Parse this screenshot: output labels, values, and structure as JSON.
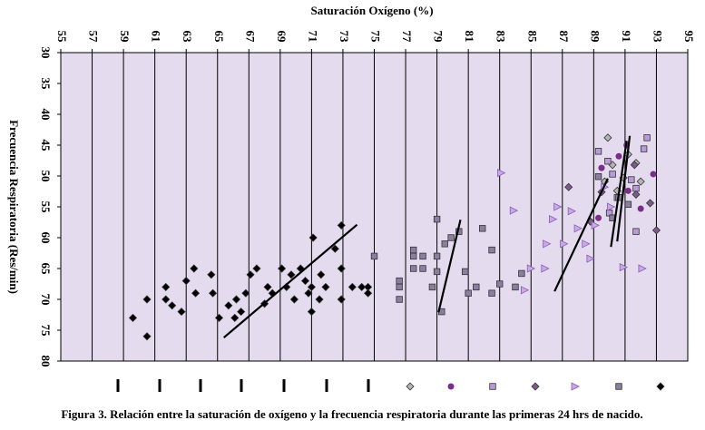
{
  "chart_data": {
    "type": "scatter",
    "title": "Saturación  Oxígeno (%)",
    "y_label": "Frecuencia Respiratoria (Res/min)",
    "caption": "Figura 3. Relación entre la saturación de oxígeno y la frecuencia respiratoria durante las primeras 24 hrs de nacido.",
    "xlim": [
      55,
      95
    ],
    "xticks": [
      55,
      57,
      59,
      61,
      63,
      65,
      67,
      69,
      71,
      73,
      75,
      77,
      79,
      81,
      83,
      85,
      87,
      89,
      91,
      93,
      95
    ],
    "ylim": [
      30,
      80
    ],
    "yticks": [
      30,
      35,
      40,
      45,
      50,
      55,
      60,
      65,
      70,
      75,
      80
    ],
    "y_inverted": true,
    "x_axis_position": "top",
    "grid": "vertical",
    "background": "#e4dcee",
    "series": [
      {
        "marker": "diamond",
        "color": "#b4b4b4",
        "x": [
          89.9,
          89.7,
          90.2,
          90.9,
          91.7,
          92.0,
          90.5,
          91.2
        ],
        "values": [
          43.8,
          50.9,
          48.2,
          50.3,
          47.9,
          50.9,
          52.4,
          46.5
        ]
      },
      {
        "marker": "circle",
        "color": "#7b2d8b",
        "x": [
          91.1,
          90.6,
          92.8,
          89.3,
          91.2,
          92.0,
          89.5
        ],
        "values": [
          45.0,
          46.8,
          49.7,
          56.8,
          52.4,
          55.3,
          48.7
        ]
      },
      {
        "marker": "square",
        "color": "#b89ad6",
        "x": [
          89.3,
          89.9,
          90.2,
          90.5,
          91.4,
          91.7,
          92.2,
          92.4,
          91.7,
          90.0
        ],
        "values": [
          46.0,
          47.6,
          49.7,
          53.5,
          50.6,
          52.0,
          45.6,
          43.8,
          59.0,
          56.0
        ]
      },
      {
        "marker": "diamond",
        "color": "#7d5a8a",
        "x": [
          87.4,
          88.8,
          89.5,
          91.6,
          92.6,
          93.0,
          91.7
        ],
        "values": [
          51.8,
          57.4,
          52.6,
          48.2,
          54.4,
          58.8,
          53.0
        ]
      },
      {
        "marker": "triangle",
        "color": "#c8a8e8",
        "x": [
          83.1,
          83.9,
          84.6,
          85.0,
          85.9,
          86.0,
          86.4,
          86.7,
          87.1,
          87.6,
          88.0,
          88.5,
          88.8,
          89.1,
          89.7,
          90.1,
          90.9,
          92.1
        ],
        "values": [
          49.5,
          55.6,
          68.5,
          65.0,
          65.0,
          61.0,
          57.0,
          55.0,
          61.0,
          55.7,
          58.5,
          61.0,
          63.4,
          58.0,
          51.8,
          55.0,
          64.8,
          65.0
        ]
      },
      {
        "marker": "square",
        "color": "#8c7ea0",
        "x": [
          76.6,
          76.6,
          76.6,
          77.5,
          77.5,
          77.5,
          78.1,
          78.1,
          78.7,
          79.0,
          79.0,
          79.0,
          79.5,
          79.9,
          80.4,
          80.8,
          81.0,
          81.5,
          81.9,
          82.5,
          82.5,
          83.0,
          84.0,
          84.4,
          75.0,
          79.3,
          89.3,
          90.2,
          90.6,
          91.2
        ],
        "values": [
          67.0,
          68.0,
          70.0,
          62.0,
          63.0,
          65.0,
          65.0,
          63.0,
          68.0,
          57.0,
          63.0,
          65.5,
          61.0,
          60.0,
          59.0,
          65.5,
          69.0,
          68.0,
          58.5,
          62.0,
          69.0,
          67.5,
          68.0,
          65.8,
          63.0,
          72.0,
          50.1,
          56.8,
          53.5,
          54.6
        ]
      },
      {
        "marker": "diamond",
        "color": "#000000",
        "x": [
          59.6,
          60.5,
          60.5,
          61.7,
          61.7,
          62.1,
          62.7,
          63.0,
          63.5,
          63.6,
          64.6,
          64.7,
          65.1,
          65.7,
          66.1,
          66.2,
          66.5,
          66.8,
          67.1,
          67.5,
          68.0,
          68.2,
          68.5,
          69.1,
          69.4,
          69.7,
          69.9,
          70.3,
          70.6,
          70.8,
          71.0,
          71.0,
          71.1,
          71.5,
          71.6,
          71.9,
          72.5,
          72.9,
          72.9,
          72.9,
          73.6,
          74.2,
          74.6,
          74.6
        ],
        "values": [
          73.0,
          70.0,
          76.0,
          68.0,
          70.0,
          71.0,
          72.0,
          67.0,
          65.0,
          69.0,
          66.0,
          69.0,
          73.0,
          71.0,
          73.0,
          70.0,
          72.0,
          69.0,
          66.0,
          65.0,
          70.7,
          68.0,
          69.0,
          65.0,
          68.0,
          66.0,
          70.0,
          65.0,
          67.0,
          69.0,
          68.0,
          72.0,
          60.0,
          70.0,
          66.0,
          68.0,
          61.8,
          58.0,
          65.0,
          70.0,
          68.0,
          68.0,
          68.0,
          69.0
        ]
      }
    ],
    "trend_lines": [
      {
        "x": [
          65.4,
          73.9
        ],
        "values": [
          76.2,
          57.9
        ]
      },
      {
        "x": [
          79.1,
          80.5
        ],
        "values": [
          72.1,
          57.1
        ]
      },
      {
        "x": [
          86.5,
          89.9
        ],
        "values": [
          68.7,
          50.4
        ]
      },
      {
        "x": [
          90.1,
          91.1
        ],
        "values": [
          61.5,
          44.3
        ]
      },
      {
        "x": [
          90.5,
          91.3
        ],
        "values": [
          60.6,
          43.5
        ]
      }
    ]
  }
}
